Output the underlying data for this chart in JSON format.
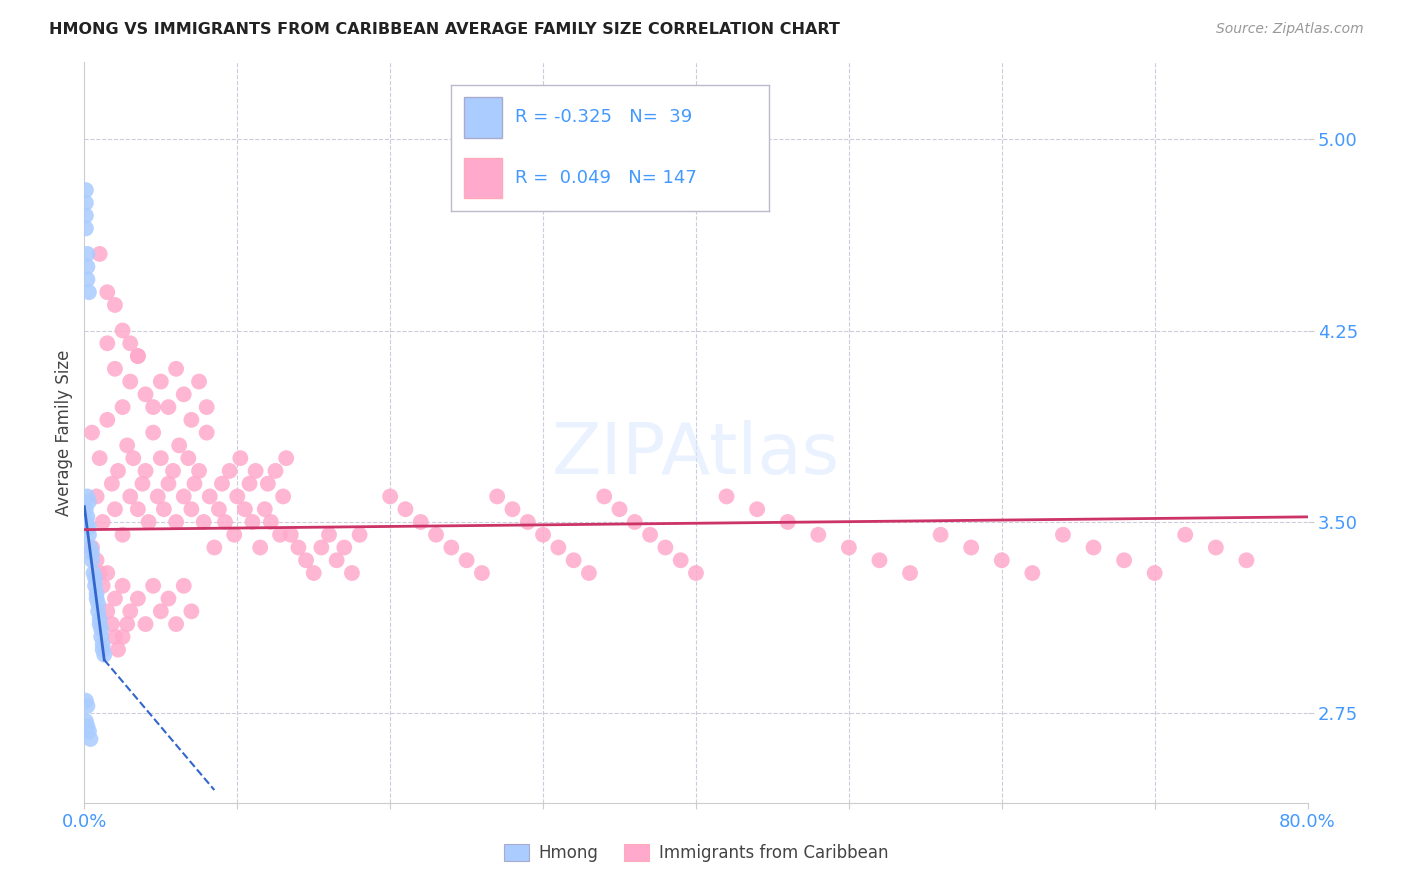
{
  "title": "HMONG VS IMMIGRANTS FROM CARIBBEAN AVERAGE FAMILY SIZE CORRELATION CHART",
  "source": "Source: ZipAtlas.com",
  "ylabel": "Average Family Size",
  "yticks": [
    2.75,
    3.5,
    4.25,
    5.0
  ],
  "ytick_color": "#4499ff",
  "background_color": "#ffffff",
  "legend_r_hmong": "-0.325",
  "legend_n_hmong": "39",
  "legend_r_carib": "0.049",
  "legend_n_carib": "147",
  "hmong_color": "#aaccff",
  "carib_color": "#ffaacc",
  "trendline_hmong_color": "#3366cc",
  "trendline_carib_color": "#cc3366",
  "grid_color": "#ccccdd",
  "spine_color": "#cccccc",
  "hmong_points": [
    [
      0.001,
      3.5
    ],
    [
      0.002,
      3.48
    ],
    [
      0.003,
      3.45
    ],
    [
      0.004,
      3.4
    ],
    [
      0.005,
      3.38
    ],
    [
      0.005,
      3.35
    ],
    [
      0.006,
      3.3
    ],
    [
      0.007,
      3.28
    ],
    [
      0.007,
      3.25
    ],
    [
      0.008,
      3.22
    ],
    [
      0.008,
      3.2
    ],
    [
      0.009,
      3.18
    ],
    [
      0.009,
      3.15
    ],
    [
      0.01,
      3.12
    ],
    [
      0.01,
      3.1
    ],
    [
      0.011,
      3.08
    ],
    [
      0.011,
      3.05
    ],
    [
      0.012,
      3.02
    ],
    [
      0.012,
      3.0
    ],
    [
      0.013,
      2.98
    ],
    [
      0.001,
      4.8
    ],
    [
      0.001,
      4.75
    ],
    [
      0.001,
      4.7
    ],
    [
      0.001,
      4.65
    ],
    [
      0.002,
      4.55
    ],
    [
      0.002,
      4.5
    ],
    [
      0.002,
      4.45
    ],
    [
      0.003,
      4.4
    ],
    [
      0.001,
      3.55
    ],
    [
      0.002,
      3.52
    ],
    [
      0.003,
      3.48
    ],
    [
      0.001,
      2.8
    ],
    [
      0.002,
      2.78
    ],
    [
      0.001,
      2.72
    ],
    [
      0.002,
      2.7
    ],
    [
      0.003,
      2.68
    ],
    [
      0.004,
      2.65
    ],
    [
      0.002,
      3.6
    ],
    [
      0.003,
      3.58
    ]
  ],
  "carib_points": [
    [
      0.005,
      3.85
    ],
    [
      0.008,
      3.6
    ],
    [
      0.01,
      3.75
    ],
    [
      0.012,
      3.5
    ],
    [
      0.015,
      3.9
    ],
    [
      0.018,
      3.65
    ],
    [
      0.02,
      3.55
    ],
    [
      0.022,
      3.7
    ],
    [
      0.025,
      3.45
    ],
    [
      0.028,
      3.8
    ],
    [
      0.03,
      3.6
    ],
    [
      0.032,
      3.75
    ],
    [
      0.035,
      3.55
    ],
    [
      0.038,
      3.65
    ],
    [
      0.04,
      3.7
    ],
    [
      0.042,
      3.5
    ],
    [
      0.045,
      3.85
    ],
    [
      0.048,
      3.6
    ],
    [
      0.05,
      3.75
    ],
    [
      0.052,
      3.55
    ],
    [
      0.055,
      3.65
    ],
    [
      0.058,
      3.7
    ],
    [
      0.06,
      3.5
    ],
    [
      0.062,
      3.8
    ],
    [
      0.065,
      3.6
    ],
    [
      0.068,
      3.75
    ],
    [
      0.07,
      3.55
    ],
    [
      0.072,
      3.65
    ],
    [
      0.075,
      3.7
    ],
    [
      0.078,
      3.5
    ],
    [
      0.08,
      3.85
    ],
    [
      0.082,
      3.6
    ],
    [
      0.085,
      3.4
    ],
    [
      0.088,
      3.55
    ],
    [
      0.09,
      3.65
    ],
    [
      0.092,
      3.5
    ],
    [
      0.095,
      3.7
    ],
    [
      0.098,
      3.45
    ],
    [
      0.1,
      3.6
    ],
    [
      0.102,
      3.75
    ],
    [
      0.105,
      3.55
    ],
    [
      0.108,
      3.65
    ],
    [
      0.11,
      3.5
    ],
    [
      0.112,
      3.7
    ],
    [
      0.115,
      3.4
    ],
    [
      0.118,
      3.55
    ],
    [
      0.12,
      3.65
    ],
    [
      0.122,
      3.5
    ],
    [
      0.125,
      3.7
    ],
    [
      0.128,
      3.45
    ],
    [
      0.13,
      3.6
    ],
    [
      0.132,
      3.75
    ],
    [
      0.015,
      4.2
    ],
    [
      0.02,
      4.1
    ],
    [
      0.025,
      3.95
    ],
    [
      0.03,
      4.05
    ],
    [
      0.035,
      4.15
    ],
    [
      0.04,
      4.0
    ],
    [
      0.045,
      3.95
    ],
    [
      0.05,
      4.05
    ],
    [
      0.055,
      3.95
    ],
    [
      0.06,
      4.1
    ],
    [
      0.065,
      4.0
    ],
    [
      0.07,
      3.9
    ],
    [
      0.075,
      4.05
    ],
    [
      0.08,
      3.95
    ],
    [
      0.015,
      3.3
    ],
    [
      0.02,
      3.2
    ],
    [
      0.025,
      3.25
    ],
    [
      0.03,
      3.15
    ],
    [
      0.035,
      3.2
    ],
    [
      0.04,
      3.1
    ],
    [
      0.045,
      3.25
    ],
    [
      0.05,
      3.15
    ],
    [
      0.055,
      3.2
    ],
    [
      0.06,
      3.1
    ],
    [
      0.065,
      3.25
    ],
    [
      0.07,
      3.15
    ],
    [
      0.01,
      4.55
    ],
    [
      0.015,
      4.4
    ],
    [
      0.02,
      4.35
    ],
    [
      0.025,
      4.25
    ],
    [
      0.03,
      4.2
    ],
    [
      0.035,
      4.15
    ],
    [
      0.005,
      3.4
    ],
    [
      0.008,
      3.35
    ],
    [
      0.01,
      3.3
    ],
    [
      0.012,
      3.25
    ],
    [
      0.015,
      3.15
    ],
    [
      0.018,
      3.1
    ],
    [
      0.02,
      3.05
    ],
    [
      0.022,
      3.0
    ],
    [
      0.025,
      3.05
    ],
    [
      0.028,
      3.1
    ],
    [
      0.135,
      3.45
    ],
    [
      0.14,
      3.4
    ],
    [
      0.145,
      3.35
    ],
    [
      0.15,
      3.3
    ],
    [
      0.155,
      3.4
    ],
    [
      0.16,
      3.45
    ],
    [
      0.165,
      3.35
    ],
    [
      0.17,
      3.4
    ],
    [
      0.175,
      3.3
    ],
    [
      0.18,
      3.45
    ],
    [
      0.2,
      3.6
    ],
    [
      0.21,
      3.55
    ],
    [
      0.22,
      3.5
    ],
    [
      0.23,
      3.45
    ],
    [
      0.24,
      3.4
    ],
    [
      0.25,
      3.35
    ],
    [
      0.26,
      3.3
    ],
    [
      0.27,
      3.6
    ],
    [
      0.28,
      3.55
    ],
    [
      0.29,
      3.5
    ],
    [
      0.3,
      3.45
    ],
    [
      0.31,
      3.4
    ],
    [
      0.32,
      3.35
    ],
    [
      0.33,
      3.3
    ],
    [
      0.34,
      3.6
    ],
    [
      0.35,
      3.55
    ],
    [
      0.36,
      3.5
    ],
    [
      0.37,
      3.45
    ],
    [
      0.38,
      3.4
    ],
    [
      0.39,
      3.35
    ],
    [
      0.4,
      3.3
    ],
    [
      0.42,
      3.6
    ],
    [
      0.44,
      3.55
    ],
    [
      0.46,
      3.5
    ],
    [
      0.48,
      3.45
    ],
    [
      0.5,
      3.4
    ],
    [
      0.52,
      3.35
    ],
    [
      0.54,
      3.3
    ],
    [
      0.56,
      3.45
    ],
    [
      0.58,
      3.4
    ],
    [
      0.6,
      3.35
    ],
    [
      0.62,
      3.3
    ],
    [
      0.64,
      3.45
    ],
    [
      0.66,
      3.4
    ],
    [
      0.68,
      3.35
    ],
    [
      0.7,
      3.3
    ],
    [
      0.72,
      3.45
    ],
    [
      0.74,
      3.4
    ],
    [
      0.76,
      3.35
    ]
  ],
  "xlim": [
    0.0,
    0.8
  ],
  "ylim": [
    2.4,
    5.3
  ],
  "xtick_positions": [
    0.0,
    0.1,
    0.2,
    0.3,
    0.4,
    0.5,
    0.6,
    0.7,
    0.8
  ],
  "trendline_hmong_solid": [
    [
      0.0,
      3.56
    ],
    [
      0.013,
      2.96
    ]
  ],
  "trendline_hmong_dash": [
    [
      0.013,
      2.96
    ],
    [
      0.085,
      2.45
    ]
  ],
  "trendline_carib": [
    [
      0.0,
      3.47
    ],
    [
      0.8,
      3.52
    ]
  ]
}
